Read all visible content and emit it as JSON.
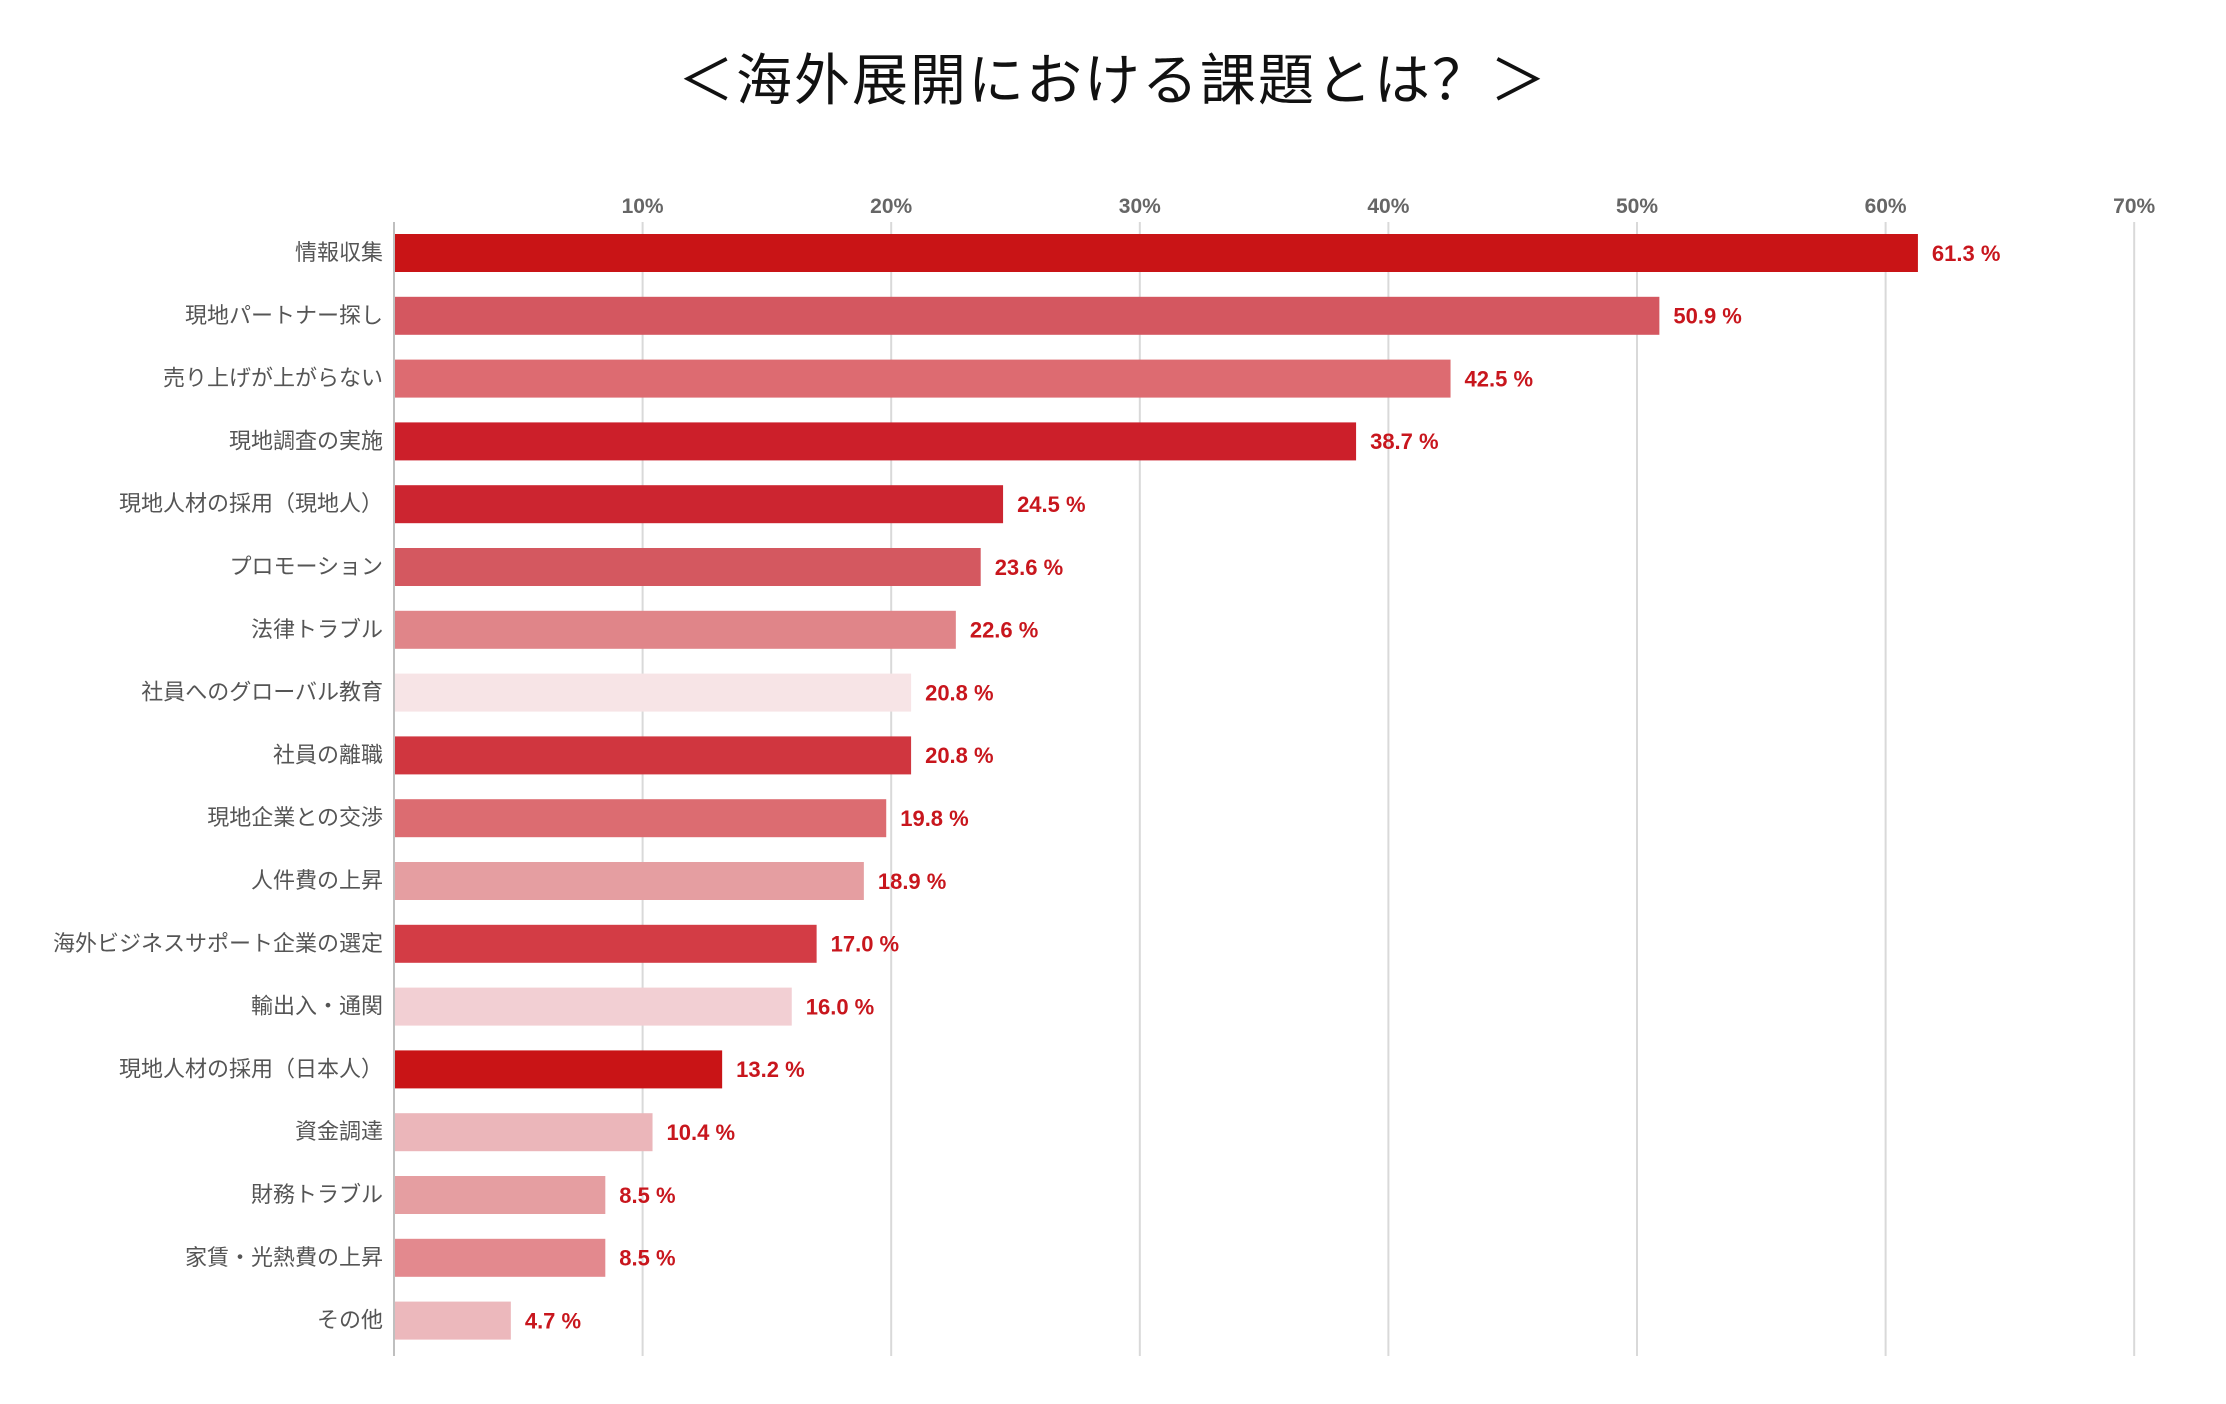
{
  "chart_data": {
    "type": "bar",
    "orientation": "horizontal",
    "title": "＜海外展開における課題とは？＞",
    "xlabel": "",
    "ylabel": "",
    "xlim": [
      0,
      70
    ],
    "x_ticks": [
      "10%",
      "20%",
      "30%",
      "40%",
      "50%",
      "60%",
      "70%"
    ],
    "x_tick_values": [
      10,
      20,
      30,
      40,
      50,
      60,
      70
    ],
    "grid": true,
    "legend": "none",
    "value_unit": "%",
    "categories": [
      "情報収集",
      "現地パートナー探し",
      "売り上げが上がらない",
      "現地調査の実施",
      "現地人材の採用（現地人）",
      "プロモーション",
      "法律トラブル",
      "社員へのグローバル教育",
      "社員の離職",
      "現地企業との交渉",
      "人件費の上昇",
      "海外ビジネスサポート企業の選定",
      "輸出入・通関",
      "現地人材の採用（日本人）",
      "資金調達",
      "財務トラブル",
      "家賃・光熱費の上昇",
      "その他"
    ],
    "values": [
      61.3,
      50.9,
      42.5,
      38.7,
      24.5,
      23.6,
      22.6,
      20.8,
      20.8,
      19.8,
      18.9,
      17.0,
      16.0,
      13.2,
      10.4,
      8.5,
      8.5,
      4.7
    ],
    "value_labels": [
      "61.3 %",
      "50.9 %",
      "42.5 %",
      "38.7 %",
      "24.5 %",
      "23.6 %",
      "22.6 %",
      "20.8 %",
      "20.8 %",
      "19.8 %",
      "18.9 %",
      "17.0 %",
      "16.0 %",
      "13.2 %",
      "10.4 %",
      "8.5 %",
      "8.5 %",
      "4.7 %"
    ],
    "bar_colors": [
      "#c91416",
      "#d45760",
      "#dd6b71",
      "#cc1f2a",
      "#cc2530",
      "#d45860",
      "#e08589",
      "#f7e4e6",
      "#d0363f",
      "#dc6c71",
      "#e59ea1",
      "#d33c45",
      "#f2cfd3",
      "#c91416",
      "#ebb6ba",
      "#e59ea1",
      "#e3898e",
      "#ecb8bc"
    ],
    "value_label_color": "#c8161d",
    "grid_color": "#d9d9d9"
  }
}
